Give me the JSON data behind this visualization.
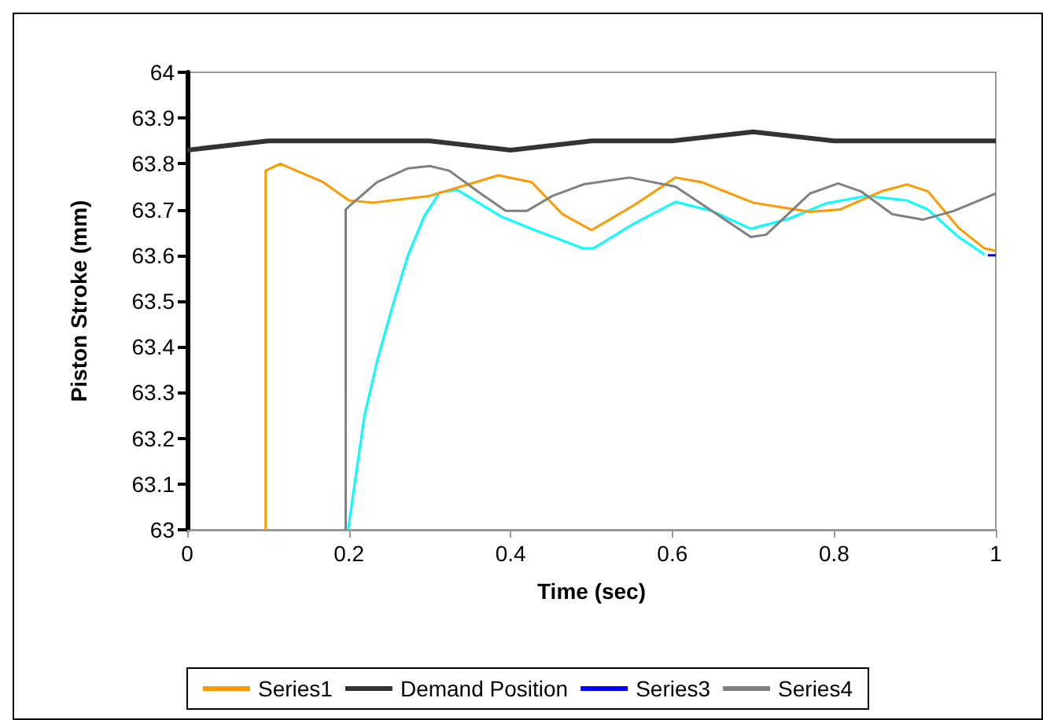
{
  "chart_data": {
    "type": "line",
    "xlabel": "Time (sec)",
    "ylabel": "Piston Stroke (mm)",
    "xlim": [
      0,
      1
    ],
    "xticks": [
      0,
      0.2,
      0.4,
      0.6,
      0.8,
      1
    ],
    "ylim": [
      63,
      64
    ],
    "yticks": [
      63,
      63.1,
      63.2,
      63.3,
      63.4,
      63.5,
      63.6,
      63.7,
      63.8,
      63.9,
      64
    ],
    "grid": false,
    "legend": "bottom",
    "marker": "none",
    "line_style": "solid",
    "series": [
      {
        "name": "Series1",
        "color": "#ff9900",
        "x": [
          0.097,
          0.097,
          0.115,
          0.168,
          0.2,
          0.23,
          0.3,
          0.385,
          0.426,
          0.464,
          0.5,
          0.553,
          0.604,
          0.636,
          0.7,
          0.77,
          0.807,
          0.859,
          0.89,
          0.916,
          0.954,
          0.986,
          1.0
        ],
        "values": [
          63,
          63.785,
          63.8,
          63.76,
          63.72,
          63.715,
          63.73,
          63.775,
          63.76,
          63.69,
          63.655,
          63.71,
          63.77,
          63.76,
          63.715,
          63.695,
          63.7,
          63.74,
          63.755,
          63.74,
          63.66,
          63.615,
          63.61
        ]
      },
      {
        "name": "Demand Position",
        "color": "#333333",
        "x": [
          0,
          0.1,
          0.2,
          0.3,
          0.4,
          0.5,
          0.6,
          0.65,
          0.7,
          0.75,
          0.8,
          0.9,
          1.0
        ],
        "values": [
          63.83,
          63.85,
          63.85,
          63.85,
          63.83,
          63.85,
          63.85,
          63.86,
          63.87,
          63.86,
          63.85,
          63.85,
          63.85
        ]
      },
      {
        "name": "Series3",
        "color": "#0000ff",
        "x": [
          0.99,
          1.0
        ],
        "values": [
          63.6,
          63.6
        ]
      },
      {
        "name": "Series4",
        "color": "#808080",
        "x": [
          0.196,
          0.196,
          0.202,
          0.235,
          0.273,
          0.3,
          0.324,
          0.363,
          0.394,
          0.42,
          0.452,
          0.49,
          0.547,
          0.604,
          0.655,
          0.697,
          0.716,
          0.77,
          0.805,
          0.833,
          0.872,
          0.91,
          0.948,
          1.0
        ],
        "values": [
          63,
          63.7,
          63.71,
          63.76,
          63.79,
          63.795,
          63.785,
          63.735,
          63.697,
          63.697,
          63.73,
          63.755,
          63.77,
          63.75,
          63.69,
          63.64,
          63.645,
          63.735,
          63.757,
          63.74,
          63.69,
          63.678,
          63.697,
          63.735
        ]
      },
      {
        "color": "#00ffff",
        "x": [
          0.199,
          0.21,
          0.219,
          0.235,
          0.254,
          0.273,
          0.293,
          0.312,
          0.334,
          0.388,
          0.426,
          0.49,
          0.502,
          0.553,
          0.604,
          0.649,
          0.697,
          0.744,
          0.789,
          0.84,
          0.89,
          0.916,
          0.954,
          0.986
        ],
        "values": [
          63,
          63.137,
          63.248,
          63.37,
          63.49,
          63.6,
          63.685,
          63.737,
          63.743,
          63.685,
          63.658,
          63.615,
          63.615,
          63.67,
          63.717,
          63.697,
          63.658,
          63.68,
          63.713,
          63.73,
          63.72,
          63.7,
          63.64,
          63.602
        ]
      }
    ]
  }
}
